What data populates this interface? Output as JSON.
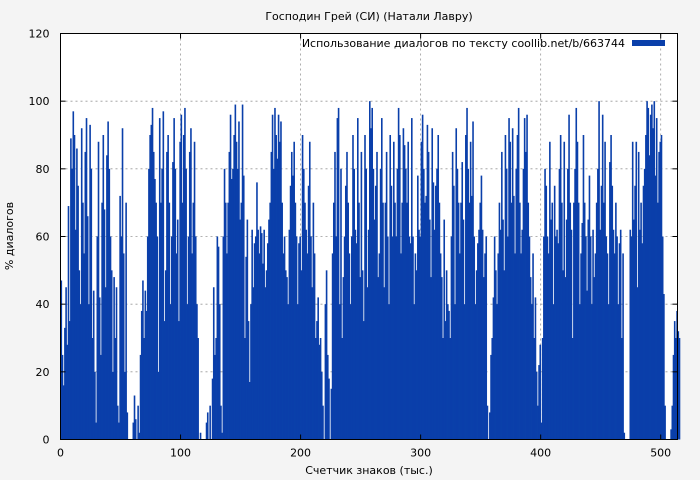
{
  "chart_data": {
    "type": "bar",
    "title": "Господин Грей (СИ) (Натали Лавру)",
    "xlabel": "Счетчик знаков (тыс.)",
    "ylabel": "% диалогов",
    "xlim": [
      0,
      514
    ],
    "ylim": [
      0,
      120
    ],
    "xticks": [
      0,
      100,
      200,
      300,
      400,
      500
    ],
    "yticks": [
      0,
      20,
      40,
      60,
      80,
      100,
      120
    ],
    "grid": true,
    "legend_position": "top-right",
    "series": [
      {
        "name": "Использование диалогов по тексту coollib.net/b/663744",
        "color": "#0a3faa",
        "x_start": 0,
        "x_step": 1,
        "values": [
          47,
          25,
          16,
          33,
          45,
          28,
          69,
          35,
          89,
          80,
          97,
          90,
          62,
          86,
          75,
          50,
          40,
          92,
          70,
          55,
          85,
          95,
          66,
          40,
          93,
          80,
          30,
          44,
          20,
          5,
          60,
          88,
          42,
          25,
          70,
          90,
          68,
          45,
          84,
          94,
          80,
          60,
          50,
          20,
          48,
          30,
          45,
          10,
          5,
          72,
          60,
          92,
          55,
          20,
          70,
          8,
          0,
          0,
          0,
          0,
          5,
          13,
          6,
          0,
          10,
          2,
          25,
          38,
          47,
          30,
          44,
          38,
          60,
          80,
          90,
          93,
          98,
          85,
          77,
          70,
          60,
          20,
          95,
          70,
          80,
          97,
          35,
          50,
          85,
          90,
          70,
          40,
          60,
          82,
          95,
          80,
          55,
          65,
          35,
          88,
          96,
          70,
          90,
          98,
          80,
          40,
          60,
          85,
          92,
          55,
          70,
          88,
          60,
          40,
          30,
          0,
          2,
          0,
          0,
          0,
          0,
          5,
          8,
          0,
          10,
          0,
          18,
          45,
          25,
          30,
          60,
          57,
          40,
          10,
          2,
          60,
          80,
          70,
          55,
          70,
          85,
          96,
          77,
          80,
          90,
          99,
          88,
          80,
          94,
          65,
          70,
          99,
          78,
          30,
          54,
          65,
          35,
          17,
          40,
          62,
          45,
          58,
          60,
          76,
          62,
          55,
          63,
          61,
          52,
          62,
          45,
          50,
          58,
          65,
          70,
          85,
          96,
          80,
          98,
          90,
          83,
          96,
          88,
          94,
          70,
          55,
          60,
          50,
          48,
          40,
          62,
          75,
          85,
          78,
          88,
          70,
          60,
          40,
          58,
          60,
          50,
          90,
          80,
          70,
          62,
          55,
          75,
          88,
          60,
          45,
          70,
          55,
          30,
          35,
          42,
          28,
          30,
          20,
          10,
          0,
          40,
          50,
          25,
          18,
          0,
          15,
          55,
          70,
          85,
          60,
          95,
          98,
          40,
          80,
          30,
          48,
          60,
          75,
          85,
          70,
          55,
          40,
          60,
          90,
          80,
          62,
          58,
          95,
          70,
          48,
          85,
          50,
          35,
          90,
          80,
          45,
          62,
          100,
          92,
          98,
          80,
          65,
          75,
          85,
          48,
          55,
          80,
          95,
          70,
          45,
          70,
          85,
          60,
          40,
          90,
          75,
          60,
          88,
          70,
          60,
          80,
          98,
          90,
          55,
          70,
          92,
          87,
          80,
          70,
          88,
          60,
          58,
          95,
          60,
          40,
          55,
          50,
          78,
          62,
          60,
          88,
          96,
          80,
          70,
          72,
          93,
          85,
          65,
          48,
          92,
          76,
          62,
          75,
          80,
          90,
          70,
          55,
          48,
          30,
          65,
          35,
          50,
          40,
          38,
          30,
          60,
          85,
          75,
          40,
          92,
          80,
          70,
          55,
          70,
          82,
          65,
          40,
          90,
          98,
          80,
          70,
          88,
          72,
          94,
          60,
          40,
          50,
          58,
          62,
          70,
          78,
          62,
          48,
          55,
          60,
          10,
          0,
          8,
          25,
          30,
          42,
          60,
          50,
          40,
          55,
          70,
          62,
          85,
          65,
          50,
          90,
          80,
          60,
          95,
          88,
          70,
          92,
          72,
          55,
          80,
          90,
          98,
          70,
          55,
          62,
          80,
          95,
          85,
          96,
          70,
          60,
          48,
          40,
          55,
          30,
          42,
          20,
          10,
          22,
          28,
          5,
          30,
          60,
          80,
          75,
          60,
          55,
          88,
          65,
          70,
          40,
          75,
          60,
          62,
          58,
          80,
          90,
          70,
          50,
          88,
          48,
          65,
          80,
          96,
          70,
          62,
          30,
          70,
          80,
          98,
          88,
          70,
          40,
          55,
          64,
          90,
          70,
          60,
          44,
          65,
          78,
          60,
          40,
          62,
          48,
          55,
          70,
          80,
          100,
          62,
          75,
          96,
          70,
          88,
          60,
          55,
          40,
          82,
          90,
          75,
          62,
          55,
          70,
          60,
          40,
          58,
          62,
          30,
          55,
          2,
          0,
          0,
          0,
          0,
          62,
          60,
          88,
          65,
          75,
          88,
          45,
          85,
          62,
          70,
          58,
          75,
          80,
          90,
          100,
          98,
          84,
          96,
          99,
          92,
          100,
          78,
          95,
          70,
          85,
          88,
          90,
          60,
          43,
          10,
          0,
          0,
          0,
          0,
          3,
          10,
          25,
          35,
          30,
          38,
          32,
          30
        ]
      }
    ]
  }
}
